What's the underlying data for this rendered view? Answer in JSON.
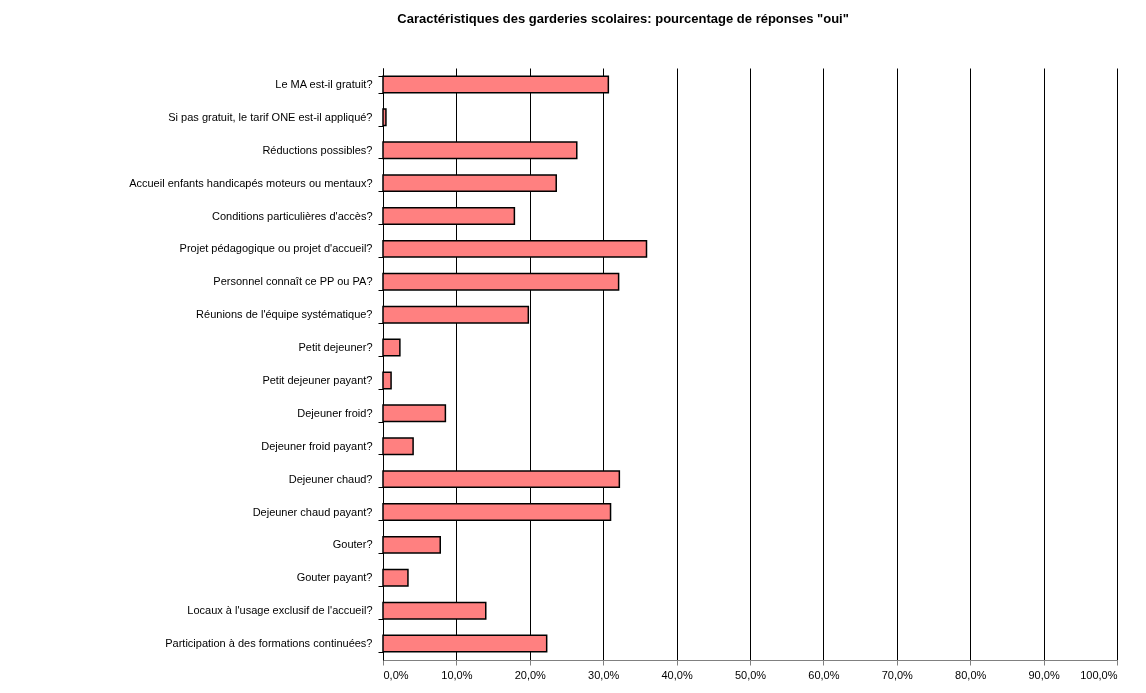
{
  "chart_data": {
    "type": "bar",
    "orientation": "horizontal",
    "title": "Caractéristiques des garderies scolaires: pourcentage de réponses \"oui\"",
    "categories": [
      "Le MA est-il gratuit?",
      "Si pas gratuit, le tarif ONE est-il appliqué?",
      "Réductions possibles?",
      "Accueil enfants handicapés moteurs ou mentaux?",
      "Conditions particulières d'accès?",
      "Projet pédagogique ou projet d'accueil?",
      "Personnel connaît ce PP ou PA?",
      "Réunions de l'équipe systématique?",
      "Petit dejeuner?",
      "Petit dejeuner payant?",
      "Dejeuner froid?",
      "Dejeuner froid payant?",
      "Dejeuner chaud?",
      "Dejeuner chaud payant?",
      "Gouter?",
      "Gouter payant?",
      "Locaux à l'usage exclusif de l'accueil?",
      "Participation à des formations continuées?"
    ],
    "values": [
      30.7,
      0.4,
      26.4,
      23.6,
      17.9,
      35.9,
      32.1,
      19.8,
      2.3,
      1.1,
      8.5,
      4.1,
      32.2,
      31.0,
      7.8,
      3.4,
      14.0,
      22.3
    ],
    "color": "#ff8080",
    "xlim": [
      0,
      100
    ],
    "xticks": [
      {
        "value": 0,
        "label": "0,0%"
      },
      {
        "value": 10,
        "label": "10,0%"
      },
      {
        "value": 20,
        "label": "20,0%"
      },
      {
        "value": 30,
        "label": "30,0%"
      },
      {
        "value": 40,
        "label": "40,0%"
      },
      {
        "value": 50,
        "label": "50,0%"
      },
      {
        "value": 60,
        "label": "60,0%"
      },
      {
        "value": 70,
        "label": "70,0%"
      },
      {
        "value": 80,
        "label": "80,0%"
      },
      {
        "value": 90,
        "label": "90,0%"
      },
      {
        "value": 100,
        "label": "100,0%"
      }
    ],
    "grid": "x"
  }
}
